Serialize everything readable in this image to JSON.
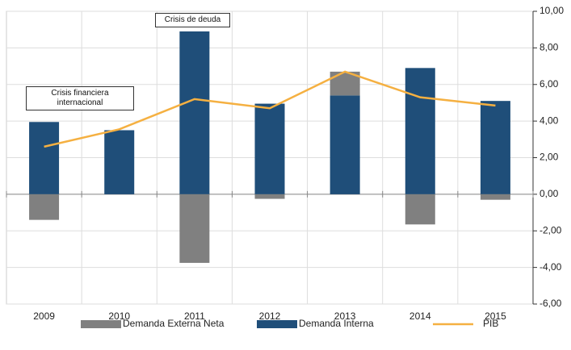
{
  "chart_data": {
    "type": "bar",
    "categories": [
      "2009",
      "2010",
      "2011",
      "2012",
      "2013",
      "2014",
      "2015"
    ],
    "series": [
      {
        "name": "Demanda Externa Neta",
        "color": "#808080",
        "type": "bar",
        "values": [
          -1.4,
          0,
          -3.75,
          -0.25,
          1.3,
          -1.65,
          -0.3
        ]
      },
      {
        "name": "Demanda Interna",
        "color": "#1f4e79",
        "type": "bar",
        "values": [
          3.95,
          3.5,
          8.9,
          4.95,
          5.4,
          6.9,
          5.1
        ]
      },
      {
        "name": "PIB",
        "color": "#f5b041",
        "type": "line",
        "values": [
          2.6,
          3.55,
          5.2,
          4.7,
          6.7,
          5.3,
          4.85
        ]
      }
    ],
    "ylim": [
      -6,
      10
    ],
    "yticks": [
      {
        "value": -6,
        "label": "-6,00"
      },
      {
        "value": -4,
        "label": "-4,00"
      },
      {
        "value": -2,
        "label": "-2,00"
      },
      {
        "value": 0,
        "label": "0,00"
      },
      {
        "value": 2,
        "label": "2,00"
      },
      {
        "value": 4,
        "label": "4,00"
      },
      {
        "value": 6,
        "label": "6,00"
      },
      {
        "value": 8,
        "label": "8,00"
      },
      {
        "value": 10,
        "label": "10,00"
      }
    ],
    "grid": true,
    "legend": "bottom",
    "annotations": [
      "Crisis financiera internacional",
      "Crisis de deuda"
    ]
  }
}
